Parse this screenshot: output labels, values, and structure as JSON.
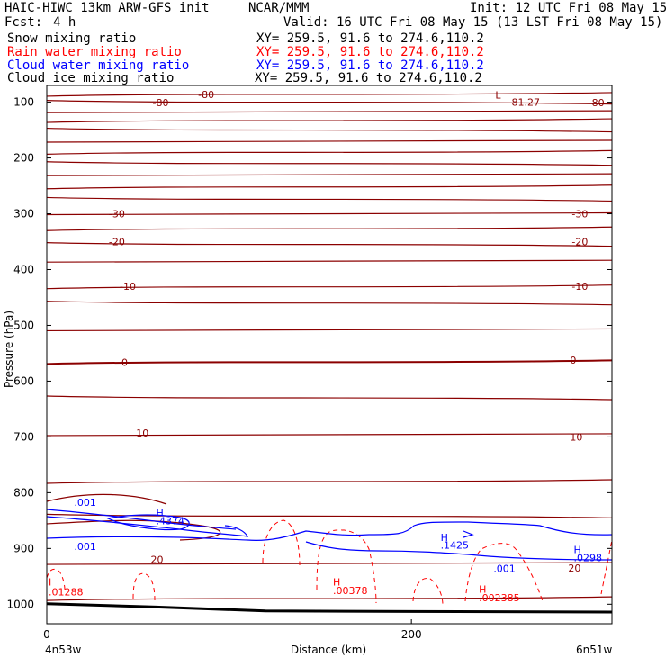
{
  "header": {
    "model": "HAIC-HIWC 13km ARW-GFS init",
    "org": "NCAR/MMM",
    "init": "Init: 12 UTC Fri 08 May 15",
    "fcst_label": "Fcst:",
    "fcst_value": "4 h",
    "valid": "Valid: 16 UTC Fri 08 May 15 (13 LST Fri 08 May 15)",
    "fields": [
      {
        "name": "Snow mixing ratio",
        "xy": "XY= 259.5, 91.6 to 274.6,110.2",
        "color": "#000000"
      },
      {
        "name": "Rain water mixing ratio",
        "xy": "XY= 259.5, 91.6 to 274.6,110.2",
        "color": "#ff0000"
      },
      {
        "name": "Cloud water mixing ratio",
        "xy": "XY= 259.5, 91.6 to 274.6,110.2",
        "color": "#0000ff"
      },
      {
        "name": "Cloud ice mixing ratio",
        "xy": "XY= 259.5, 91.6 to 274.6,110.2",
        "color": "#000000"
      }
    ]
  },
  "chart_data": {
    "type": "line",
    "subtype": "vertical cross-section contour plot",
    "xlabel": "Distance (km)",
    "ylabel": "Pressure (hPa)",
    "xlim": [
      0,
      310
    ],
    "ylim": [
      1035,
      70
    ],
    "x_ticks": [
      0,
      200
    ],
    "y_ticks": [
      100,
      200,
      300,
      400,
      500,
      600,
      700,
      800,
      900,
      1000
    ],
    "endpoint_labels": {
      "left": "4n53w",
      "right": "6n51w"
    },
    "temperature_contours_color": "#8b0000",
    "temperature_contours": [
      {
        "label": "-80",
        "pressure": 86
      },
      {
        "label": "-80",
        "pressure": 100
      },
      {
        "label": "",
        "pressure": 117
      },
      {
        "label": "",
        "pressure": 133
      },
      {
        "label": "",
        "pressure": 150
      },
      {
        "label": "",
        "pressure": 170
      },
      {
        "label": "",
        "pressure": 190
      },
      {
        "label": "",
        "pressure": 210
      },
      {
        "label": "",
        "pressure": 230
      },
      {
        "label": "",
        "pressure": 252
      },
      {
        "label": "",
        "pressure": 274
      },
      {
        "label": "-30",
        "pressure": 300
      },
      {
        "label": "",
        "pressure": 327
      },
      {
        "label": "-20",
        "pressure": 355
      },
      {
        "label": "",
        "pressure": 385
      },
      {
        "label": "-10",
        "pressure": 431
      },
      {
        "label": "",
        "pressure": 460
      },
      {
        "label": "",
        "pressure": 508
      },
      {
        "label": "0",
        "pressure": 566
      },
      {
        "label": "",
        "pressure": 630
      },
      {
        "label": "10",
        "pressure": 696
      },
      {
        "label": "",
        "pressure": 780
      },
      {
        "label": "",
        "pressure": 842
      },
      {
        "label": "20",
        "pressure": 927
      },
      {
        "label": "",
        "pressure": 990
      }
    ],
    "temperature_labels": [
      {
        "text": "-80",
        "x": 83,
        "p": 86
      },
      {
        "text": "-80",
        "x": 58,
        "p": 101
      },
      {
        "text": "-81.27",
        "x": 253,
        "p": 100
      },
      {
        "text": "L",
        "x": 246,
        "p": 87
      },
      {
        "text": "-80",
        "x": 297,
        "p": 101
      },
      {
        "text": "-30",
        "x": 34,
        "p": 300
      },
      {
        "text": "-30",
        "x": 288,
        "p": 300
      },
      {
        "text": "-20",
        "x": 34,
        "p": 350
      },
      {
        "text": "-20",
        "x": 288,
        "p": 350
      },
      {
        "text": "-10",
        "x": 40,
        "p": 430
      },
      {
        "text": "-10",
        "x": 288,
        "p": 430
      },
      {
        "text": "0",
        "x": 41,
        "p": 566
      },
      {
        "text": "0",
        "x": 287,
        "p": 562
      },
      {
        "text": "10",
        "x": 49,
        "p": 693
      },
      {
        "text": "10",
        "x": 287,
        "p": 700
      },
      {
        "text": "20",
        "x": 57,
        "p": 920
      },
      {
        "text": "20",
        "x": 286,
        "p": 935
      }
    ],
    "cloud_water_labels": [
      {
        "text": ".001",
        "x": 15,
        "p": 817
      },
      {
        "text": ".001",
        "x": 15,
        "p": 896
      },
      {
        "text": "H",
        "x": 60,
        "p": 836
      },
      {
        "text": ".4374",
        "x": 60,
        "p": 850
      },
      {
        "text": "H",
        "x": 216,
        "p": 880
      },
      {
        "text": ".1425",
        "x": 216,
        "p": 894
      },
      {
        "text": ".001",
        "x": 245,
        "p": 936
      },
      {
        "text": "H",
        "x": 289,
        "p": 902
      },
      {
        "text": ".0298",
        "x": 289,
        "p": 916
      }
    ],
    "rain_water_labels": [
      {
        "text": "H",
        "x": 157,
        "p": 960
      },
      {
        "text": ".00378",
        "x": 157,
        "p": 975
      },
      {
        "text": "H",
        "x": 237,
        "p": 973
      },
      {
        "text": ".002385",
        "x": 237,
        "p": 988
      },
      {
        "text": "I",
        "x": 1,
        "p": 960
      },
      {
        "text": ".01288",
        "x": 1,
        "p": 978
      }
    ],
    "terrain_pressure": [
      {
        "x": 0,
        "p": 999
      },
      {
        "x": 60,
        "p": 1005
      },
      {
        "x": 120,
        "p": 1012
      },
      {
        "x": 200,
        "p": 1013
      },
      {
        "x": 310,
        "p": 1014
      }
    ]
  }
}
